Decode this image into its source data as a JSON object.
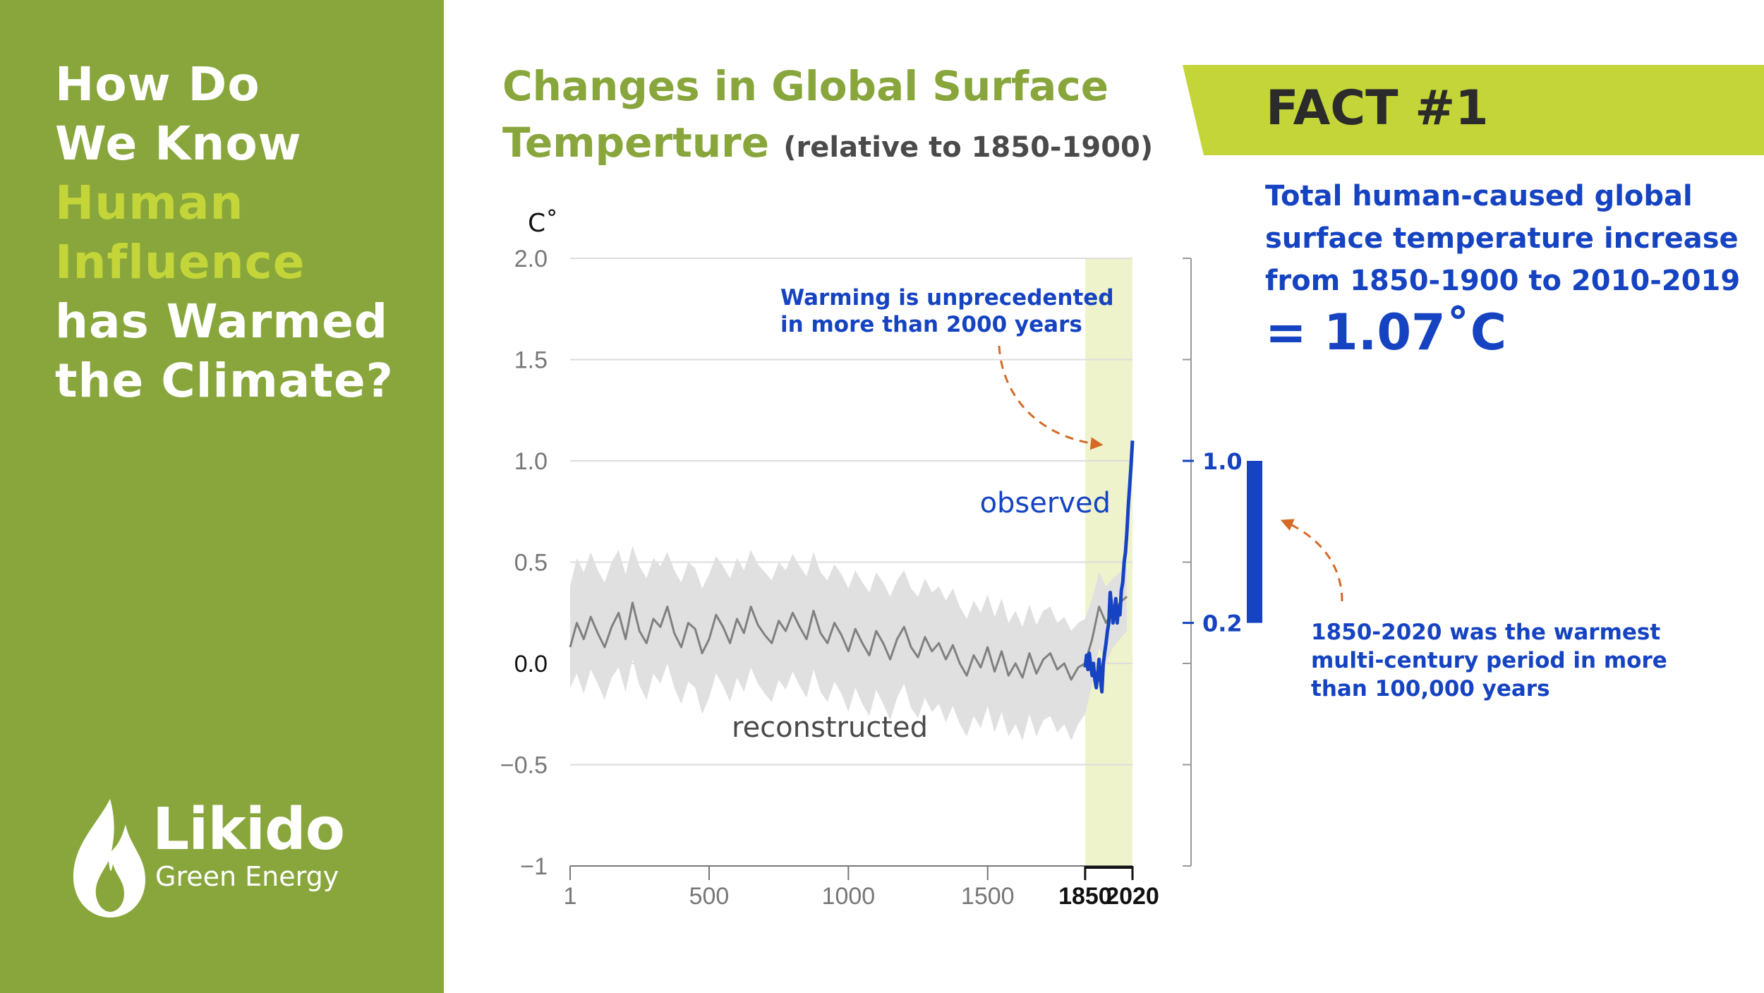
{
  "sidebar": {
    "title_lines": [
      {
        "text": "How Do",
        "highlight": false
      },
      {
        "text": "We Know",
        "highlight": false
      },
      {
        "text": "Human",
        "highlight": true
      },
      {
        "text": "Influence",
        "highlight": true
      },
      {
        "text": "has Warmed",
        "highlight": false
      },
      {
        "text": "the Climate?",
        "highlight": false
      }
    ],
    "logo": {
      "name": "Likido",
      "tagline": "Green Energy"
    }
  },
  "colors": {
    "sidebar_bg": "#88a63c",
    "highlight": "#c3d538",
    "observed_line": "#1543c1",
    "reconstructed_line": "#808080",
    "uncertainty_band": "#e0e0e0",
    "recent_period": "#eef3cc",
    "arrow": "#d46a25",
    "text_dark": "#4a4a4a"
  },
  "header": {
    "title_line1": "Changes in Global Surface",
    "title_line2": "Temperture",
    "title_suffix": "(relative to 1850-1900)"
  },
  "fact": {
    "label": "FACT #1",
    "text_lines": [
      "Total human-caused global",
      "surface temperature increase",
      "from 1850-1900 to 2010-2019"
    ],
    "value": "= 1.07˚C"
  },
  "chart_data": {
    "type": "line",
    "unit_label": "C˚",
    "y_ticks": [
      "2.0",
      "1.5",
      "1.0",
      "0.5",
      "0.0",
      "−0.5",
      "−1"
    ],
    "y_tick_values": [
      2.0,
      1.5,
      1.0,
      0.5,
      0.0,
      -0.5,
      -1.0
    ],
    "ylim": [
      -1.0,
      2.0
    ],
    "x_ticks": [
      "1",
      "500",
      "1000",
      "1500",
      "1850",
      "2020"
    ],
    "x_tick_values": [
      1,
      500,
      1000,
      1500,
      1850,
      2020
    ],
    "xlim": [
      1,
      2020
    ],
    "highlight_period": [
      1850,
      2020
    ],
    "series": [
      {
        "name": "reconstructed",
        "x": [
          1,
          25,
          50,
          75,
          100,
          125,
          150,
          175,
          200,
          225,
          250,
          275,
          300,
          325,
          350,
          375,
          400,
          425,
          450,
          475,
          500,
          525,
          550,
          575,
          600,
          625,
          650,
          675,
          700,
          725,
          750,
          775,
          800,
          825,
          850,
          875,
          900,
          925,
          950,
          975,
          1000,
          1025,
          1050,
          1075,
          1100,
          1125,
          1150,
          1175,
          1200,
          1225,
          1250,
          1275,
          1300,
          1325,
          1350,
          1375,
          1400,
          1425,
          1450,
          1475,
          1500,
          1525,
          1550,
          1575,
          1600,
          1625,
          1650,
          1675,
          1700,
          1725,
          1750,
          1775,
          1800,
          1825,
          1850,
          1875,
          1900,
          1925,
          1950,
          1975,
          2000
        ],
        "values": [
          0.08,
          0.2,
          0.12,
          0.23,
          0.15,
          0.08,
          0.18,
          0.25,
          0.12,
          0.3,
          0.16,
          0.1,
          0.22,
          0.18,
          0.28,
          0.15,
          0.08,
          0.2,
          0.17,
          0.05,
          0.12,
          0.24,
          0.18,
          0.1,
          0.22,
          0.15,
          0.28,
          0.19,
          0.14,
          0.1,
          0.21,
          0.16,
          0.25,
          0.18,
          0.12,
          0.26,
          0.15,
          0.1,
          0.2,
          0.14,
          0.06,
          0.17,
          0.1,
          0.04,
          0.16,
          0.1,
          0.02,
          0.12,
          0.18,
          0.08,
          0.03,
          0.13,
          0.06,
          0.1,
          0.02,
          0.09,
          0.0,
          -0.06,
          0.04,
          -0.02,
          0.08,
          -0.04,
          0.06,
          -0.06,
          0.0,
          -0.07,
          0.05,
          -0.05,
          0.02,
          0.05,
          -0.03,
          0.0,
          -0.08,
          -0.02,
          0.0,
          0.12,
          0.28,
          0.2,
          0.26,
          0.3,
          0.33
        ],
        "band_upper": [
          0.38,
          0.52,
          0.45,
          0.55,
          0.46,
          0.4,
          0.5,
          0.56,
          0.44,
          0.58,
          0.48,
          0.42,
          0.52,
          0.48,
          0.55,
          0.46,
          0.4,
          0.5,
          0.47,
          0.37,
          0.44,
          0.53,
          0.48,
          0.42,
          0.52,
          0.46,
          0.56,
          0.49,
          0.45,
          0.41,
          0.5,
          0.46,
          0.54,
          0.48,
          0.43,
          0.55,
          0.45,
          0.41,
          0.49,
          0.44,
          0.37,
          0.46,
          0.4,
          0.35,
          0.45,
          0.4,
          0.33,
          0.41,
          0.46,
          0.37,
          0.33,
          0.42,
          0.35,
          0.38,
          0.31,
          0.37,
          0.28,
          0.22,
          0.31,
          0.25,
          0.34,
          0.23,
          0.32,
          0.2,
          0.26,
          0.18,
          0.29,
          0.19,
          0.26,
          0.28,
          0.2,
          0.23,
          0.16,
          0.2,
          0.22,
          0.32,
          0.45,
          0.38,
          0.42,
          0.45,
          0.48
        ],
        "band_lower": [
          -0.12,
          -0.05,
          -0.15,
          -0.03,
          -0.1,
          -0.18,
          -0.07,
          -0.02,
          -0.14,
          0.02,
          -0.11,
          -0.18,
          -0.05,
          -0.1,
          0.0,
          -0.12,
          -0.2,
          -0.09,
          -0.12,
          -0.25,
          -0.17,
          -0.05,
          -0.11,
          -0.19,
          -0.07,
          -0.14,
          -0.02,
          -0.1,
          -0.15,
          -0.19,
          -0.08,
          -0.13,
          -0.04,
          -0.11,
          -0.17,
          -0.03,
          -0.14,
          -0.19,
          -0.09,
          -0.15,
          -0.24,
          -0.12,
          -0.2,
          -0.26,
          -0.13,
          -0.2,
          -0.28,
          -0.17,
          -0.1,
          -0.22,
          -0.27,
          -0.17,
          -0.24,
          -0.2,
          -0.29,
          -0.21,
          -0.3,
          -0.36,
          -0.26,
          -0.32,
          -0.21,
          -0.34,
          -0.24,
          -0.36,
          -0.3,
          -0.38,
          -0.25,
          -0.36,
          -0.28,
          -0.26,
          -0.34,
          -0.3,
          -0.38,
          -0.3,
          -0.25,
          -0.1,
          0.08,
          0.0,
          0.08,
          0.12,
          0.16
        ]
      },
      {
        "name": "observed",
        "x": [
          1850,
          1855,
          1860,
          1865,
          1870,
          1875,
          1880,
          1885,
          1890,
          1895,
          1900,
          1905,
          1910,
          1915,
          1920,
          1925,
          1930,
          1935,
          1940,
          1945,
          1950,
          1955,
          1960,
          1965,
          1970,
          1975,
          1980,
          1985,
          1990,
          1995,
          2000,
          2005,
          2010,
          2015,
          2020
        ],
        "values": [
          -0.02,
          0.04,
          -0.03,
          0.05,
          -0.01,
          -0.06,
          0.0,
          -0.08,
          -0.12,
          -0.05,
          0.02,
          -0.08,
          -0.14,
          0.0,
          0.05,
          0.1,
          0.16,
          0.2,
          0.35,
          0.28,
          0.2,
          0.25,
          0.32,
          0.2,
          0.28,
          0.24,
          0.36,
          0.4,
          0.5,
          0.55,
          0.65,
          0.78,
          0.88,
          0.98,
          1.1
        ]
      }
    ],
    "labels": {
      "observed": "observed",
      "reconstructed": "reconstructed"
    },
    "annotation_top": {
      "lines": [
        "Warming is unprecedented",
        "in more than 2000 years"
      ]
    },
    "side_scale": {
      "tick_labels": [
        "1.0",
        "0.2"
      ],
      "tick_values": [
        1.0,
        0.2
      ],
      "bar_range": [
        0.2,
        1.0
      ]
    },
    "annotation_right": {
      "lines": [
        "1850-2020 was the warmest",
        "multi-century period in more",
        "than 100,000 years"
      ]
    }
  }
}
